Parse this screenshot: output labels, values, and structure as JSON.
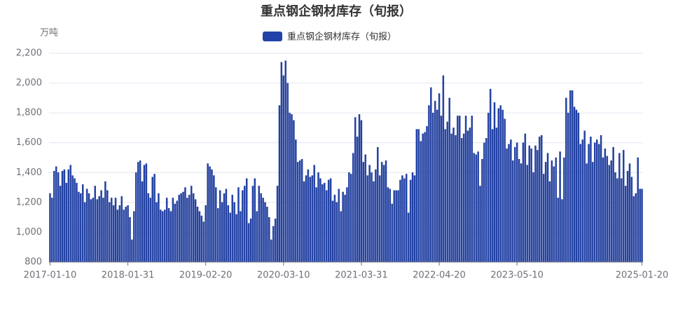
{
  "chart_data": {
    "type": "bar",
    "title": "重点钢企钢材库存（旬报）",
    "y_unit": "万吨",
    "categories": [
      "2017-01-10",
      null,
      null,
      null,
      null,
      null,
      null,
      null,
      null,
      null,
      null,
      null,
      null,
      null,
      null,
      null,
      null,
      null,
      null,
      null,
      null,
      null,
      null,
      null,
      null,
      null,
      null,
      null,
      null,
      null,
      null,
      null,
      null,
      null,
      null,
      null,
      null,
      null,
      "2018-01-31",
      null,
      null,
      null,
      null,
      null,
      null,
      null,
      null,
      null,
      null,
      null,
      null,
      null,
      null,
      null,
      null,
      null,
      null,
      null,
      null,
      null,
      null,
      null,
      null,
      null,
      null,
      null,
      null,
      null,
      null,
      null,
      null,
      null,
      null,
      null,
      null,
      null,
      "2019-02-20",
      null,
      null,
      null,
      null,
      null,
      null,
      null,
      null,
      null,
      null,
      null,
      null,
      null,
      null,
      null,
      null,
      null,
      null,
      null,
      null,
      null,
      null,
      null,
      null,
      null,
      null,
      null,
      null,
      null,
      null,
      null,
      null,
      null,
      null,
      null,
      null,
      null,
      "2020-03-10",
      null,
      null,
      null,
      null,
      null,
      null,
      null,
      null,
      null,
      null,
      null,
      null,
      null,
      null,
      null,
      null,
      null,
      null,
      null,
      null,
      null,
      null,
      null,
      null,
      null,
      null,
      null,
      null,
      null,
      null,
      null,
      null,
      null,
      null,
      null,
      null,
      null,
      "2021-03-31",
      null,
      null,
      null,
      null,
      null,
      null,
      null,
      null,
      null,
      null,
      null,
      null,
      null,
      null,
      null,
      null,
      null,
      null,
      null,
      null,
      null,
      null,
      null,
      null,
      null,
      null,
      null,
      null,
      null,
      null,
      null,
      null,
      null,
      null,
      null,
      null,
      null,
      "2022-04-20",
      null,
      null,
      null,
      null,
      null,
      null,
      null,
      null,
      null,
      null,
      null,
      null,
      null,
      null,
      null,
      null,
      null,
      null,
      null,
      null,
      null,
      null,
      null,
      null,
      null,
      null,
      null,
      null,
      null,
      null,
      null,
      null,
      null,
      null,
      null,
      null,
      null,
      "2023-05-10",
      null,
      null,
      null,
      null,
      null,
      null,
      null,
      null,
      null,
      null,
      null,
      null,
      null,
      null,
      null,
      null,
      null,
      null,
      null,
      null,
      null,
      null,
      null,
      null,
      null,
      null,
      null,
      null,
      null,
      null,
      null,
      null,
      null,
      null,
      null,
      null,
      null,
      null,
      null,
      null,
      null,
      null,
      null,
      null,
      null,
      null,
      null,
      null,
      null,
      null,
      null,
      null,
      null,
      null,
      null,
      null,
      null,
      null,
      null,
      null,
      "2025-01-20"
    ],
    "series": [
      {
        "name": "重点钢企钢材库存（旬报）",
        "color": "#2343a8",
        "values": [
          1260,
          1230,
          1410,
          1440,
          1400,
          1310,
          1410,
          1420,
          1330,
          1420,
          1450,
          1380,
          1360,
          1330,
          1270,
          1260,
          1320,
          1200,
          1290,
          1260,
          1220,
          1230,
          1310,
          1220,
          1240,
          1280,
          1230,
          1340,
          1280,
          1200,
          1230,
          1180,
          1230,
          1150,
          1180,
          1240,
          1150,
          1170,
          1180,
          1100,
          950,
          1140,
          1400,
          1470,
          1480,
          1340,
          1450,
          1460,
          1260,
          1230,
          1370,
          1390,
          1200,
          1260,
          1150,
          1140,
          1150,
          1230,
          1160,
          1140,
          1230,
          1190,
          1210,
          1250,
          1260,
          1270,
          1300,
          1230,
          1250,
          1310,
          1260,
          1220,
          1170,
          1140,
          1110,
          1070,
          1180,
          1460,
          1440,
          1420,
          1380,
          1300,
          1160,
          1280,
          1200,
          1260,
          1290,
          1180,
          1130,
          1250,
          1200,
          1120,
          1300,
          1140,
          1280,
          1310,
          1360,
          1060,
          1090,
          1310,
          1360,
          1140,
          1310,
          1260,
          1230,
          1200,
          1170,
          1100,
          950,
          1040,
          1090,
          1310,
          1850,
          2140,
          2050,
          2150,
          2000,
          1800,
          1790,
          1750,
          1620,
          1470,
          1480,
          1490,
          1340,
          1380,
          1420,
          1370,
          1380,
          1450,
          1300,
          1400,
          1360,
          1320,
          1330,
          1280,
          1350,
          1360,
          1210,
          1250,
          1200,
          1290,
          1140,
          1270,
          1250,
          1300,
          1400,
          1390,
          1530,
          1770,
          1640,
          1790,
          1750,
          1470,
          1520,
          1380,
          1450,
          1400,
          1340,
          1420,
          1570,
          1380,
          1470,
          1450,
          1480,
          1300,
          1290,
          1190,
          1280,
          1280,
          1280,
          1350,
          1380,
          1360,
          1390,
          1130,
          1350,
          1400,
          1380,
          1690,
          1690,
          1610,
          1660,
          1670,
          1710,
          1850,
          1970,
          1800,
          1880,
          1820,
          1930,
          1780,
          2050,
          1690,
          1740,
          1900,
          1660,
          1700,
          1650,
          1780,
          1780,
          1630,
          1660,
          1780,
          1680,
          1700,
          1780,
          1530,
          1520,
          1540,
          1310,
          1490,
          1600,
          1630,
          1800,
          1960,
          1690,
          1870,
          1700,
          1830,
          1850,
          1820,
          1760,
          1560,
          1590,
          1620,
          1480,
          1570,
          1600,
          1490,
          1460,
          1600,
          1660,
          1450,
          1580,
          1560,
          1400,
          1580,
          1550,
          1640,
          1650,
          1390,
          1470,
          1530,
          1340,
          1480,
          1440,
          1500,
          1230,
          1540,
          1220,
          1500,
          1900,
          1800,
          1950,
          1950,
          1840,
          1820,
          1800,
          1590,
          1620,
          1680,
          1460,
          1590,
          1640,
          1470,
          1600,
          1620,
          1590,
          1650,
          1500,
          1560,
          1510,
          1450,
          1480,
          1570,
          1400,
          1360,
          1530,
          1360,
          1550,
          1310,
          1410,
          1460,
          1370,
          1240,
          1260,
          1500,
          1290,
          1290
        ]
      }
    ],
    "ylim": [
      800,
      2200
    ],
    "yticks": [
      800,
      {
        "value": 1000,
        "label": "1,000"
      },
      {
        "value": 1200,
        "label": "1,200"
      },
      {
        "value": 1400,
        "label": "1,400"
      },
      {
        "value": 1600,
        "label": "1,600"
      },
      {
        "value": 1800,
        "label": "1,800"
      },
      {
        "value": 2000,
        "label": "2,000"
      },
      {
        "value": 2200,
        "label": "2,200"
      }
    ],
    "grid": true
  }
}
